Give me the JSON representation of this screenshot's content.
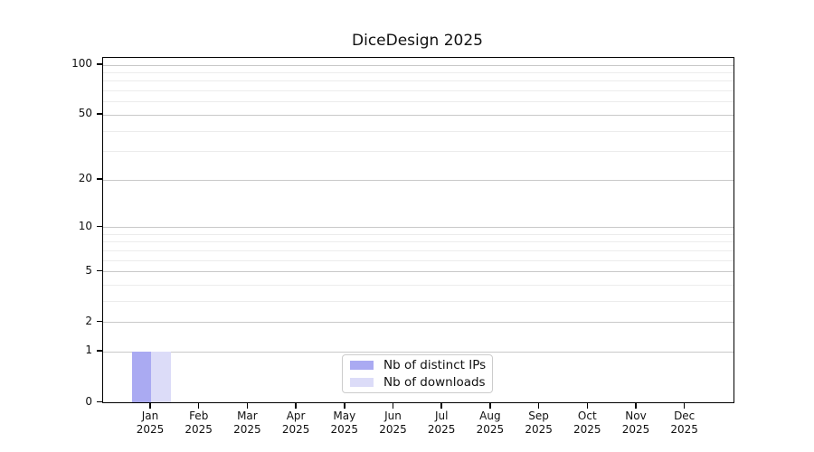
{
  "figure": {
    "background": "#ffffff"
  },
  "chart_data": {
    "type": "bar",
    "title": "DiceDesign 2025",
    "categories": [
      "Jan",
      "Feb",
      "Mar",
      "Apr",
      "May",
      "Jun",
      "Jul",
      "Aug",
      "Sep",
      "Oct",
      "Nov",
      "Dec"
    ],
    "category_year": "2025",
    "series": [
      {
        "name": "Nb of distinct IPs",
        "color": "#aaaaf2",
        "values": [
          1,
          0,
          0,
          0,
          0,
          0,
          0,
          0,
          0,
          0,
          0,
          0
        ]
      },
      {
        "name": "Nb of downloads",
        "color": "#dcdcf8",
        "values": [
          1,
          0,
          0,
          0,
          0,
          0,
          0,
          0,
          0,
          0,
          0,
          0
        ]
      }
    ],
    "xlabel": "",
    "ylabel": "",
    "yscale": "log10(1+x)",
    "ylim": [
      0,
      110
    ],
    "y_major_ticks": [
      0,
      1,
      2,
      5,
      10,
      20,
      50,
      100
    ],
    "y_minor_gridlines": [
      3,
      4,
      6,
      7,
      8,
      9,
      30,
      40,
      60,
      70,
      80,
      90
    ],
    "grid": "horizontal",
    "legend_position": "bottom-center",
    "colors": {
      "major_grid": "#c9c9c9",
      "minor_grid": "#ececec",
      "frame": "#000000",
      "text": "#111111"
    }
  }
}
